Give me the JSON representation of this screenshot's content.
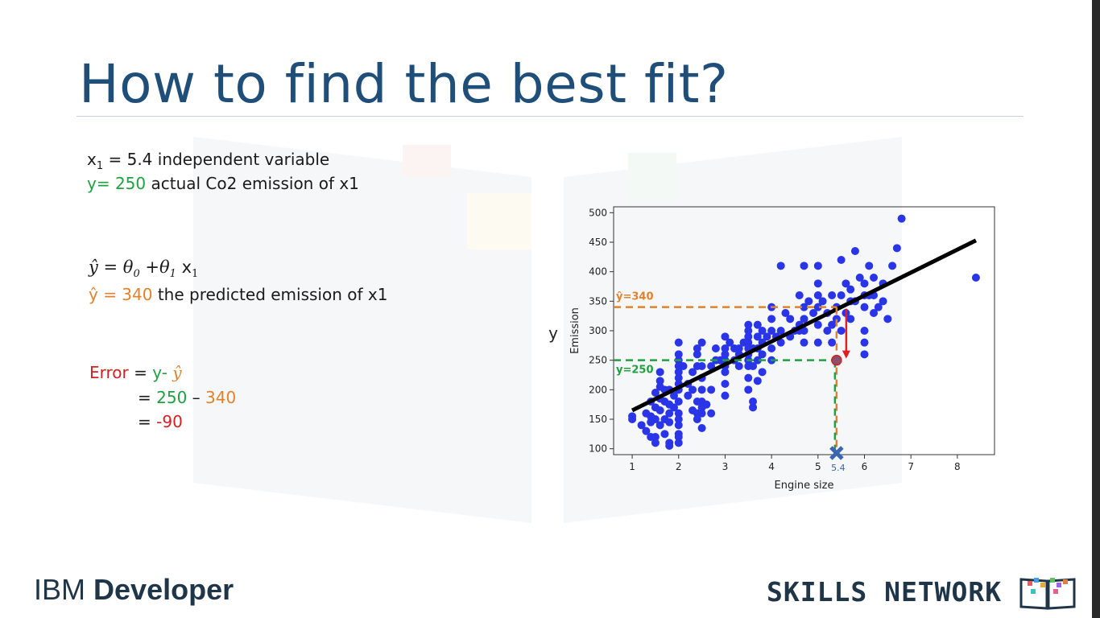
{
  "slide": {
    "title": "How to find the best fit?",
    "x1_line": {
      "var": "x",
      "sub": "1",
      "rest": " = 5.4  independent variable"
    },
    "y_line": {
      "value_part": "y= 250",
      "rest": " actual Co2 emission of x1"
    },
    "formula": {
      "lhs": "ŷ = θ",
      "sub0": "0",
      "mid": " +θ",
      "sub1": "1",
      "x": " x",
      "subx": "1"
    },
    "yhat_line": {
      "value_part": "ŷ = 340",
      "rest": " the predicted emission of x1"
    },
    "error": {
      "label": "Error",
      "eq": " = ",
      "y": "y-",
      "yhat": " ŷ",
      "line2_eq": "= ",
      "line2_a": "250",
      "line2_minus": " – ",
      "line2_b": "340",
      "line3_eq": "= ",
      "line3_val": "-90"
    }
  },
  "chart_data": {
    "type": "scatter",
    "xlabel": "Engine size",
    "ylabel": "Emission",
    "outer_ylabel": "y",
    "xlim": [
      0.6,
      8.8
    ],
    "ylim": [
      90,
      510
    ],
    "xticks": [
      1,
      2,
      3,
      4,
      5,
      6,
      7,
      8
    ],
    "yticks": [
      100,
      150,
      200,
      250,
      300,
      350,
      400,
      450,
      500
    ],
    "fit_line": {
      "x": [
        1.0,
        8.4
      ],
      "y": [
        165,
        453
      ],
      "color": "#000000"
    },
    "highlight": {
      "x": 5.4,
      "y_actual": 250,
      "y_pred": 340,
      "x_label": "5.4",
      "y_actual_label": "y=250",
      "y_pred_label": "ŷ=340"
    },
    "point_color": "#2b35e8",
    "points": [
      [
        1.0,
        150
      ],
      [
        1.0,
        155
      ],
      [
        1.2,
        140
      ],
      [
        1.3,
        160
      ],
      [
        1.3,
        130
      ],
      [
        1.4,
        180
      ],
      [
        1.4,
        155
      ],
      [
        1.4,
        120
      ],
      [
        1.4,
        145
      ],
      [
        1.5,
        170
      ],
      [
        1.5,
        110
      ],
      [
        1.5,
        195
      ],
      [
        1.5,
        150
      ],
      [
        1.6,
        140
      ],
      [
        1.6,
        165
      ],
      [
        1.6,
        185
      ],
      [
        1.6,
        205
      ],
      [
        1.6,
        230
      ],
      [
        1.7,
        150
      ],
      [
        1.7,
        180
      ],
      [
        1.7,
        125
      ],
      [
        1.8,
        160
      ],
      [
        1.8,
        200
      ],
      [
        1.8,
        145
      ],
      [
        1.8,
        175
      ],
      [
        1.8,
        110
      ],
      [
        1.9,
        190
      ],
      [
        1.9,
        170
      ],
      [
        2.0,
        180
      ],
      [
        2.0,
        200
      ],
      [
        2.0,
        220
      ],
      [
        2.0,
        240
      ],
      [
        2.0,
        260
      ],
      [
        2.0,
        280
      ],
      [
        2.0,
        160
      ],
      [
        2.0,
        140
      ],
      [
        2.0,
        125
      ],
      [
        2.0,
        110
      ],
      [
        2.0,
        150
      ],
      [
        2.0,
        210
      ],
      [
        2.0,
        230
      ],
      [
        2.0,
        250
      ],
      [
        2.2,
        190
      ],
      [
        2.2,
        210
      ],
      [
        2.3,
        230
      ],
      [
        2.3,
        200
      ],
      [
        2.4,
        240
      ],
      [
        2.4,
        180
      ],
      [
        2.4,
        160
      ],
      [
        2.4,
        150
      ],
      [
        2.4,
        270
      ],
      [
        2.4,
        260
      ],
      [
        2.5,
        200
      ],
      [
        2.5,
        220
      ],
      [
        2.5,
        240
      ],
      [
        2.5,
        180
      ],
      [
        2.5,
        170
      ],
      [
        2.5,
        160
      ],
      [
        2.5,
        280
      ],
      [
        2.5,
        135
      ],
      [
        2.7,
        240
      ],
      [
        2.7,
        200
      ],
      [
        2.7,
        160
      ],
      [
        2.8,
        250
      ],
      [
        2.8,
        270
      ],
      [
        3.0,
        230
      ],
      [
        3.0,
        250
      ],
      [
        3.0,
        260
      ],
      [
        3.0,
        270
      ],
      [
        3.0,
        290
      ],
      [
        3.0,
        210
      ],
      [
        3.0,
        190
      ],
      [
        3.0,
        240
      ],
      [
        3.2,
        250
      ],
      [
        3.2,
        270
      ],
      [
        3.3,
        260
      ],
      [
        3.3,
        240
      ],
      [
        3.4,
        280
      ],
      [
        3.5,
        240
      ],
      [
        3.5,
        250
      ],
      [
        3.5,
        260
      ],
      [
        3.5,
        270
      ],
      [
        3.5,
        280
      ],
      [
        3.5,
        290
      ],
      [
        3.5,
        300
      ],
      [
        3.5,
        310
      ],
      [
        3.5,
        220
      ],
      [
        3.5,
        200
      ],
      [
        3.6,
        270
      ],
      [
        3.6,
        240
      ],
      [
        3.6,
        180
      ],
      [
        3.6,
        170
      ],
      [
        3.7,
        250
      ],
      [
        3.7,
        270
      ],
      [
        3.7,
        290
      ],
      [
        3.7,
        310
      ],
      [
        3.8,
        260
      ],
      [
        3.8,
        280
      ],
      [
        3.8,
        300
      ],
      [
        3.8,
        230
      ],
      [
        3.9,
        290
      ],
      [
        4.0,
        300
      ],
      [
        4.0,
        320
      ],
      [
        4.0,
        340
      ],
      [
        4.0,
        270
      ],
      [
        4.0,
        250
      ],
      [
        4.2,
        300
      ],
      [
        4.2,
        280
      ],
      [
        4.3,
        330
      ],
      [
        4.4,
        290
      ],
      [
        4.4,
        320
      ],
      [
        4.6,
        300
      ],
      [
        4.6,
        310
      ],
      [
        4.6,
        360
      ],
      [
        4.7,
        300
      ],
      [
        4.7,
        340
      ],
      [
        4.7,
        320
      ],
      [
        4.7,
        280
      ],
      [
        4.8,
        350
      ],
      [
        5.0,
        280
      ],
      [
        5.0,
        310
      ],
      [
        5.0,
        340
      ],
      [
        5.0,
        360
      ],
      [
        5.0,
        380
      ],
      [
        5.2,
        300
      ],
      [
        5.2,
        330
      ],
      [
        5.3,
        280
      ],
      [
        5.3,
        360
      ],
      [
        5.3,
        310
      ],
      [
        5.4,
        320
      ],
      [
        5.4,
        340
      ],
      [
        5.5,
        300
      ],
      [
        5.5,
        360
      ],
      [
        5.5,
        420
      ],
      [
        5.6,
        330
      ],
      [
        5.6,
        380
      ],
      [
        5.7,
        320
      ],
      [
        5.7,
        350
      ],
      [
        5.7,
        370
      ],
      [
        5.9,
        390
      ],
      [
        6.0,
        340
      ],
      [
        6.0,
        360
      ],
      [
        6.0,
        380
      ],
      [
        6.0,
        300
      ],
      [
        6.0,
        280
      ],
      [
        6.0,
        260
      ],
      [
        6.1,
        410
      ],
      [
        6.2,
        330
      ],
      [
        6.2,
        360
      ],
      [
        6.2,
        390
      ],
      [
        6.3,
        340
      ],
      [
        6.4,
        380
      ],
      [
        6.5,
        320
      ],
      [
        6.7,
        440
      ],
      [
        6.8,
        490
      ],
      [
        8.4,
        390
      ],
      [
        4.2,
        410
      ],
      [
        4.7,
        410
      ],
      [
        5.0,
        410
      ],
      [
        5.8,
        435
      ],
      [
        6.6,
        410
      ],
      [
        3.3,
        270
      ],
      [
        2.1,
        240
      ],
      [
        1.6,
        215
      ],
      [
        1.7,
        200
      ],
      [
        3.1,
        280
      ],
      [
        2.9,
        250
      ],
      [
        4.1,
        290
      ],
      [
        4.5,
        300
      ],
      [
        4.9,
        330
      ],
      [
        5.1,
        350
      ],
      [
        5.8,
        350
      ],
      [
        6.1,
        360
      ],
      [
        6.4,
        350
      ],
      [
        3.7,
        215
      ],
      [
        2.3,
        165
      ],
      [
        2.6,
        175
      ],
      [
        1.5,
        120
      ],
      [
        1.8,
        105
      ],
      [
        2.0,
        120
      ]
    ]
  }
}
